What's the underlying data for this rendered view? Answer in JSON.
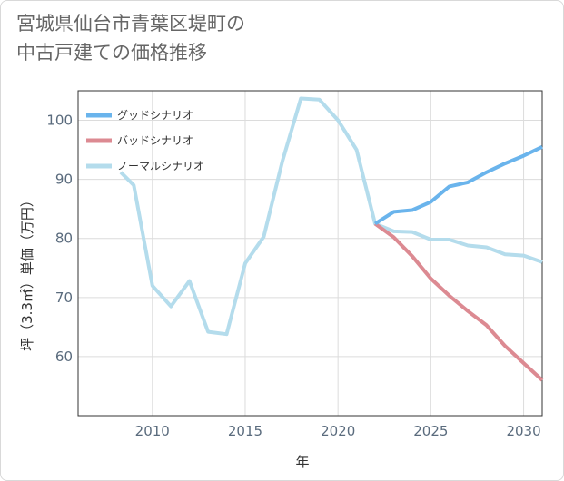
{
  "title": {
    "line1": "宮城県仙台市青葉区堤町の",
    "line2": "中古戸建ての価格推移"
  },
  "chart_data": {
    "type": "line",
    "xlabel": "年",
    "ylabel": "坪（3.3㎡）単価（万円）",
    "xlim": [
      2006,
      2031
    ],
    "ylim": [
      50,
      105
    ],
    "xticks": [
      2010,
      2015,
      2020,
      2025,
      2030
    ],
    "yticks": [
      60,
      70,
      80,
      90,
      100
    ],
    "grid": true,
    "legend_position": "top-left",
    "series": [
      {
        "name": "グッドシナリオ",
        "color": "#6ab4ec",
        "points": [
          [
            2022,
            82.5
          ],
          [
            2023,
            84.5
          ],
          [
            2024,
            84.8
          ],
          [
            2025,
            86.2
          ],
          [
            2026,
            88.8
          ],
          [
            2027,
            89.5
          ],
          [
            2028,
            91.2
          ],
          [
            2029,
            92.7
          ],
          [
            2030,
            94
          ],
          [
            2031,
            95.5
          ]
        ]
      },
      {
        "name": "バッドシナリオ",
        "color": "#dc8a92",
        "points": [
          [
            2022,
            82.5
          ],
          [
            2023,
            80.2
          ],
          [
            2024,
            77
          ],
          [
            2025,
            73.2
          ],
          [
            2026,
            70.3
          ],
          [
            2027,
            67.7
          ],
          [
            2028,
            65.3
          ],
          [
            2029,
            61.8
          ],
          [
            2030,
            58.9
          ],
          [
            2031,
            56
          ]
        ]
      },
      {
        "name": "ノーマルシナリオ",
        "color": "#b4dcec",
        "points": [
          [
            2008.3,
            91.2
          ],
          [
            2009,
            89
          ],
          [
            2010,
            72
          ],
          [
            2011,
            68.5
          ],
          [
            2012,
            72.8
          ],
          [
            2013,
            64.2
          ],
          [
            2014,
            63.8
          ],
          [
            2015,
            75.8
          ],
          [
            2016,
            80.3
          ],
          [
            2017,
            93
          ],
          [
            2018,
            103.7
          ],
          [
            2019,
            103.5
          ],
          [
            2020,
            100
          ],
          [
            2021,
            95
          ],
          [
            2022,
            82.5
          ],
          [
            2023,
            81.2
          ],
          [
            2024,
            81.1
          ],
          [
            2025,
            79.8
          ],
          [
            2026,
            79.8
          ],
          [
            2027,
            78.8
          ],
          [
            2028,
            78.5
          ],
          [
            2029,
            77.3
          ],
          [
            2030,
            77.1
          ],
          [
            2031,
            76
          ]
        ]
      }
    ]
  }
}
